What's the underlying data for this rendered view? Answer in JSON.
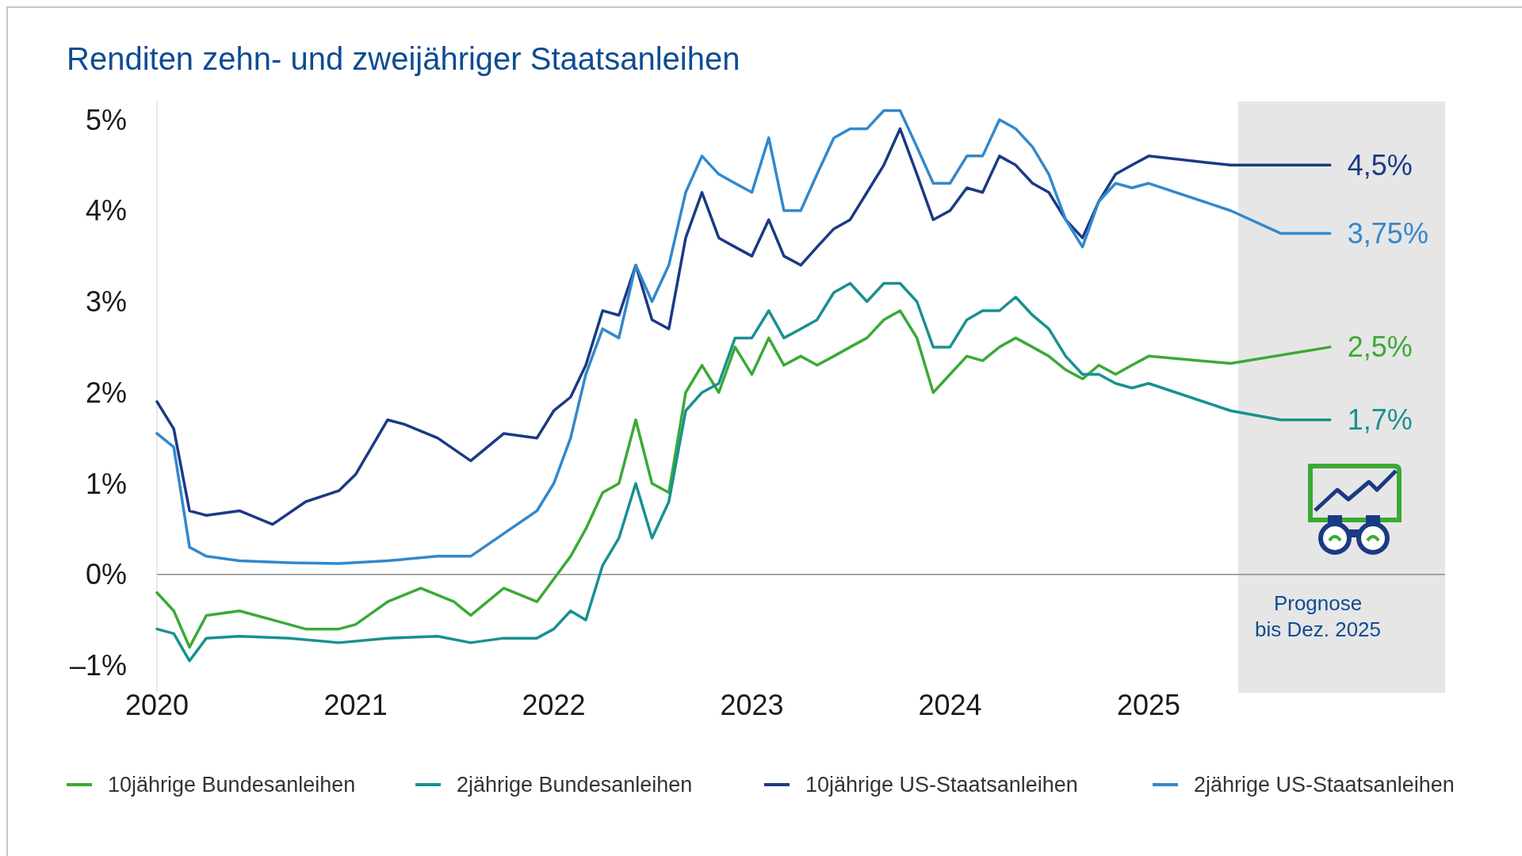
{
  "chart_data": {
    "type": "line",
    "title": "Renditen zehn- und zweijähriger Staatsanleihen",
    "xlim": [
      "2020-01-01",
      "2026-07-01"
    ],
    "xticks": [
      {
        "value": "2020-01-01",
        "label": "2020"
      },
      {
        "value": "2021-01-01",
        "label": "2021"
      },
      {
        "value": "2022-01-01",
        "label": "2022"
      },
      {
        "value": "2023-01-01",
        "label": "2023"
      },
      {
        "value": "2024-01-01",
        "label": "2024"
      },
      {
        "value": "2025-01-01",
        "label": "2025"
      }
    ],
    "ylim": [
      -1.3,
      5.2
    ],
    "yticks": [
      {
        "value": -1,
        "label": "–1%"
      },
      {
        "value": 0,
        "label": "0%"
      },
      {
        "value": 1,
        "label": "1%"
      },
      {
        "value": 2,
        "label": "2%"
      },
      {
        "value": 3,
        "label": "3%"
      },
      {
        "value": 4,
        "label": "4%"
      },
      {
        "value": 5,
        "label": "5%"
      }
    ],
    "grid": false,
    "legend": "bottom",
    "marker": "none",
    "line_style": "solid",
    "series": [
      {
        "name": "10jährige Bundesanleihen",
        "color": "#3aaa35",
        "x": [
          "2020-01",
          "2020-02",
          "2020-03",
          "2020-04",
          "2020-06",
          "2020-08",
          "2020-10",
          "2020-12",
          "2021-01",
          "2021-03",
          "2021-05",
          "2021-07",
          "2021-08",
          "2021-10",
          "2021-12",
          "2022-01",
          "2022-02",
          "2022-03",
          "2022-04",
          "2022-05",
          "2022-06",
          "2022-07",
          "2022-08",
          "2022-09",
          "2022-10",
          "2022-11",
          "2022-12",
          "2023-01",
          "2023-02",
          "2023-03",
          "2023-04",
          "2023-05",
          "2023-06",
          "2023-07",
          "2023-08",
          "2023-09",
          "2023-10",
          "2023-11",
          "2023-12",
          "2024-01",
          "2024-02",
          "2024-03",
          "2024-04",
          "2024-05",
          "2024-06",
          "2024-07",
          "2024-08",
          "2024-09",
          "2024-10",
          "2024-11",
          "2024-12",
          "2025-01",
          "2025-06",
          "2025-12"
        ],
        "values": [
          -0.2,
          -0.4,
          -0.8,
          -0.45,
          -0.4,
          -0.5,
          -0.6,
          -0.6,
          -0.55,
          -0.3,
          -0.15,
          -0.3,
          -0.45,
          -0.15,
          -0.3,
          -0.05,
          0.2,
          0.5,
          0.9,
          1.0,
          1.7,
          1.0,
          0.9,
          2.0,
          2.3,
          2.0,
          2.5,
          2.2,
          2.6,
          2.3,
          2.4,
          2.3,
          2.4,
          2.5,
          2.6,
          2.8,
          2.9,
          2.6,
          2.0,
          2.2,
          2.4,
          2.35,
          2.5,
          2.6,
          2.5,
          2.4,
          2.25,
          2.15,
          2.3,
          2.2,
          2.3,
          2.4,
          2.32,
          2.5
        ]
      },
      {
        "name": "2jährige Bundesanleihen",
        "color": "#1a9090",
        "x": [
          "2020-01",
          "2020-02",
          "2020-03",
          "2020-04",
          "2020-06",
          "2020-09",
          "2020-12",
          "2021-03",
          "2021-06",
          "2021-08",
          "2021-10",
          "2021-12",
          "2022-01",
          "2022-02",
          "2022-03",
          "2022-04",
          "2022-05",
          "2022-06",
          "2022-07",
          "2022-08",
          "2022-09",
          "2022-10",
          "2022-11",
          "2022-12",
          "2023-01",
          "2023-02",
          "2023-03",
          "2023-04",
          "2023-05",
          "2023-06",
          "2023-07",
          "2023-08",
          "2023-09",
          "2023-10",
          "2023-11",
          "2023-12",
          "2024-01",
          "2024-02",
          "2024-03",
          "2024-04",
          "2024-05",
          "2024-06",
          "2024-07",
          "2024-08",
          "2024-09",
          "2024-10",
          "2024-11",
          "2024-12",
          "2025-01",
          "2025-06",
          "2025-09",
          "2025-12"
        ],
        "values": [
          -0.6,
          -0.65,
          -0.95,
          -0.7,
          -0.68,
          -0.7,
          -0.75,
          -0.7,
          -0.68,
          -0.75,
          -0.7,
          -0.7,
          -0.6,
          -0.4,
          -0.5,
          0.1,
          0.4,
          1.0,
          0.4,
          0.8,
          1.8,
          2.0,
          2.1,
          2.6,
          2.6,
          2.9,
          2.6,
          2.7,
          2.8,
          3.1,
          3.2,
          3.0,
          3.2,
          3.2,
          3.0,
          2.5,
          2.5,
          2.8,
          2.9,
          2.9,
          3.05,
          2.85,
          2.7,
          2.4,
          2.2,
          2.2,
          2.1,
          2.05,
          2.1,
          1.8,
          1.7,
          1.7
        ]
      },
      {
        "name": "10jährige US-Staatsanleihen",
        "color": "#1b3a84",
        "x": [
          "2020-01",
          "2020-02",
          "2020-03",
          "2020-04",
          "2020-06",
          "2020-08",
          "2020-10",
          "2020-12",
          "2021-01",
          "2021-03",
          "2021-04",
          "2021-06",
          "2021-08",
          "2021-10",
          "2021-12",
          "2022-01",
          "2022-02",
          "2022-03",
          "2022-04",
          "2022-05",
          "2022-06",
          "2022-07",
          "2022-08",
          "2022-09",
          "2022-10",
          "2022-11",
          "2022-12",
          "2023-01",
          "2023-02",
          "2023-03",
          "2023-04",
          "2023-05",
          "2023-06",
          "2023-07",
          "2023-08",
          "2023-09",
          "2023-10",
          "2023-11",
          "2023-12",
          "2024-01",
          "2024-02",
          "2024-03",
          "2024-04",
          "2024-05",
          "2024-06",
          "2024-07",
          "2024-08",
          "2024-09",
          "2024-10",
          "2024-11",
          "2024-12",
          "2025-01",
          "2025-06",
          "2025-12"
        ],
        "values": [
          1.9,
          1.6,
          0.7,
          0.65,
          0.7,
          0.55,
          0.8,
          0.92,
          1.1,
          1.7,
          1.65,
          1.5,
          1.25,
          1.55,
          1.5,
          1.8,
          1.95,
          2.3,
          2.9,
          2.85,
          3.4,
          2.8,
          2.7,
          3.7,
          4.2,
          3.7,
          3.6,
          3.5,
          3.9,
          3.5,
          3.4,
          3.6,
          3.8,
          3.9,
          4.2,
          4.5,
          4.9,
          4.4,
          3.9,
          4.0,
          4.25,
          4.2,
          4.6,
          4.5,
          4.3,
          4.2,
          3.9,
          3.7,
          4.1,
          4.4,
          4.5,
          4.6,
          4.5,
          4.5
        ]
      },
      {
        "name": "2jährige US-Staatsanleihen",
        "color": "#3388cc",
        "x": [
          "2020-01",
          "2020-02",
          "2020-03",
          "2020-04",
          "2020-06",
          "2020-09",
          "2020-12",
          "2021-03",
          "2021-06",
          "2021-08",
          "2021-10",
          "2021-12",
          "2022-01",
          "2022-02",
          "2022-03",
          "2022-04",
          "2022-05",
          "2022-06",
          "2022-07",
          "2022-08",
          "2022-09",
          "2022-10",
          "2022-11",
          "2022-12",
          "2023-01",
          "2023-02",
          "2023-03",
          "2023-04",
          "2023-05",
          "2023-06",
          "2023-07",
          "2023-08",
          "2023-09",
          "2023-10",
          "2023-11",
          "2023-12",
          "2024-01",
          "2024-02",
          "2024-03",
          "2024-04",
          "2024-05",
          "2024-06",
          "2024-07",
          "2024-08",
          "2024-09",
          "2024-10",
          "2024-11",
          "2024-12",
          "2025-01",
          "2025-06",
          "2025-09",
          "2025-12"
        ],
        "values": [
          1.55,
          1.4,
          0.3,
          0.2,
          0.15,
          0.13,
          0.12,
          0.15,
          0.2,
          0.2,
          0.45,
          0.7,
          1.0,
          1.5,
          2.2,
          2.7,
          2.6,
          3.4,
          3.0,
          3.4,
          4.2,
          4.6,
          4.4,
          4.3,
          4.2,
          4.8,
          4.0,
          4.0,
          4.4,
          4.8,
          4.9,
          4.9,
          5.1,
          5.1,
          4.7,
          4.3,
          4.3,
          4.6,
          4.6,
          5.0,
          4.9,
          4.7,
          4.4,
          3.9,
          3.6,
          4.1,
          4.3,
          4.25,
          4.3,
          4.0,
          3.75,
          3.75
        ]
      }
    ],
    "ref_lines": [
      {
        "axis": "y",
        "value": 0,
        "color": "#8c8c8c"
      }
    ],
    "bands": [
      {
        "axis": "x",
        "from": "2025-06-15",
        "to": "2026-07-01",
        "label": "Prognose\nbis Dez. 2025",
        "color": "#e6e6e6"
      }
    ],
    "annotations": [
      {
        "text": "4,5%",
        "x": "2025-12",
        "y": 4.5
      },
      {
        "text": "3,75%",
        "x": "2025-12",
        "y": 3.75
      },
      {
        "text": "2,5%",
        "x": "2025-12",
        "y": 2.5
      },
      {
        "text": "1,7%",
        "x": "2025-12",
        "y": 1.7
      }
    ]
  }
}
